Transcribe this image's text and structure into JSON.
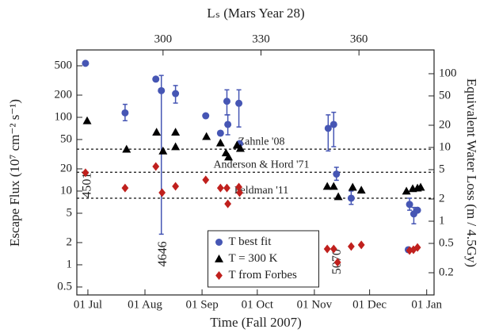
{
  "chart_data": {
    "type": "scatter",
    "xlabel": "Time (Fall 2007)",
    "ylabel": "Escape Flux (10⁷ cm⁻² s⁻¹)",
    "y2label": "Equivalent Water Loss (m / 4.5Gy)",
    "x2label": "Lₛ (Mars Year 28)",
    "xlim": [
      -6,
      188
    ],
    "xticks": [
      {
        "value": 0,
        "label": "01 Jul"
      },
      {
        "value": 31,
        "label": "01 Aug"
      },
      {
        "value": 62,
        "label": "01 Sep"
      },
      {
        "value": 92,
        "label": "01 Oct"
      },
      {
        "value": 123,
        "label": "01 Nov"
      },
      {
        "value": 153,
        "label": "01 Dec"
      },
      {
        "value": 184,
        "label": "01 Jan"
      }
    ],
    "x2lim": [
      273.6,
      383
    ],
    "x2ticks": [
      300,
      330,
      360
    ],
    "log_y": true,
    "ylim": [
      0.39,
      820
    ],
    "yticks": [
      0.5,
      1,
      2,
      5,
      10,
      20,
      50,
      100,
      200,
      500
    ],
    "y2lim": [
      0.1,
      210
    ],
    "y2ticks": [
      0.2,
      0.5,
      1,
      2,
      5,
      10,
      20,
      50,
      100
    ],
    "legend": "lower center",
    "series": [
      {
        "name": "T best fit",
        "marker": "circle",
        "color": "#4656b4",
        "x": [
          -1.3,
          20.2,
          36.9,
          39.9,
          47.6,
          64,
          72,
          75.5,
          76,
          82,
          82.4,
          130.5,
          133.5,
          135,
          143,
          174.7,
          177,
          179,
          174
        ],
        "values": [
          540,
          115,
          330,
          230,
          210,
          105,
          61,
          165,
          80,
          155,
          44,
          71,
          80,
          17,
          8,
          6.6,
          4.9,
          5.5,
          1.6
        ],
        "lower": [
          null,
          90,
          null,
          2.6,
          156,
          null,
          null,
          108,
          58,
          74,
          null,
          35,
          40,
          14,
          6.6,
          5.5,
          3.6,
          null,
          null
        ],
        "upper": [
          null,
          150,
          null,
          370,
          270,
          null,
          null,
          236,
          108,
          236,
          null,
          108,
          117,
          21,
          10,
          8,
          6,
          null,
          null
        ]
      },
      {
        "name": "T = 300 K",
        "marker": "triangle",
        "color": "#000000",
        "x": [
          -0.4,
          21,
          37.3,
          40.8,
          47.6,
          47.6,
          64.4,
          72,
          75,
          76.4,
          81,
          82.8,
          130,
          133.5,
          136,
          143.8,
          148.5,
          173,
          176.4,
          179,
          180.7
        ],
        "values": [
          90,
          37,
          63,
          35,
          63,
          40,
          55,
          45,
          33,
          29,
          42,
          38,
          11.6,
          11.6,
          8.4,
          11.3,
          10.3,
          10,
          10.8,
          11,
          11.3
        ]
      },
      {
        "name": "T from Forbes",
        "marker": "diamond",
        "color": "#c0201d",
        "x": [
          -1.3,
          20.2,
          36.9,
          40.3,
          47.6,
          64,
          72,
          75.5,
          76,
          82,
          82.4,
          130,
          133.5,
          135.6,
          143,
          148.5,
          174.7,
          176.8,
          179
        ],
        "values": [
          17.7,
          11,
          21.5,
          9.5,
          11.6,
          14.2,
          11,
          11,
          6.7,
          11.3,
          9.5,
          1.64,
          1.64,
          1.08,
          1.77,
          1.86,
          1.56,
          1.6,
          1.72
        ]
      }
    ],
    "hlines": [
      {
        "label": "Zahnle '08",
        "value": 37
      },
      {
        "label": "Anderson & Hord '71",
        "value": 18
      },
      {
        "label": "Feldman '11",
        "value": 8
      }
    ],
    "annotations": [
      {
        "text": "4501",
        "x": 0,
        "y": 12
      },
      {
        "text": "4646",
        "x": 41,
        "y": 1.4
      },
      {
        "text": "5070",
        "x": 135.6,
        "y": 1.1
      }
    ]
  }
}
